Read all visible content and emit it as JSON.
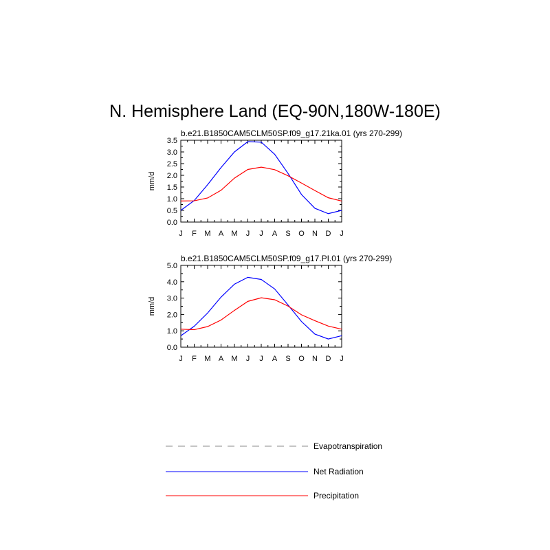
{
  "title": "N. Hemisphere Land (EQ-90N,180W-180E)",
  "colors": {
    "evapotranspiration": "#666666",
    "net_radiation": "#0000ff",
    "precipitation": "#ff0000"
  },
  "legend": [
    {
      "label": "Evapotranspiration",
      "color": "#666666",
      "style": "dashed"
    },
    {
      "label": "Net Radiation",
      "color": "#0000ff",
      "style": "solid"
    },
    {
      "label": "Precipitation",
      "color": "#ff0000",
      "style": "solid"
    }
  ],
  "chart_data": [
    {
      "type": "line",
      "title": "b.e21.B1850CAM5CLM50SP.f09_g17.21ka.01 (yrs 270-299)",
      "xlabel": "",
      "ylabel": "mm/d",
      "ylim": [
        0,
        3.5
      ],
      "yticks": [
        "0.0",
        "0.5",
        "1.0",
        "1.5",
        "2.0",
        "2.5",
        "3.0",
        "3.5"
      ],
      "categories": [
        "J",
        "F",
        "M",
        "A",
        "M",
        "J",
        "J",
        "A",
        "S",
        "O",
        "N",
        "D",
        "J"
      ],
      "series": [
        {
          "name": "Net Radiation",
          "color": "#0000ff",
          "values": [
            0.5,
            0.92,
            1.6,
            2.33,
            3.0,
            3.44,
            3.42,
            2.9,
            2.08,
            1.18,
            0.59,
            0.36,
            0.5
          ]
        },
        {
          "name": "Precipitation",
          "color": "#ff0000",
          "values": [
            0.9,
            0.91,
            1.03,
            1.36,
            1.88,
            2.25,
            2.35,
            2.24,
            1.98,
            1.67,
            1.35,
            1.04,
            0.9
          ]
        }
      ]
    },
    {
      "type": "line",
      "title": "b.e21.B1850CAM5CLM50SP.f09_g17.PI.01 (yrs 270-299)",
      "xlabel": "",
      "ylabel": "mm/d",
      "ylim": [
        0,
        5
      ],
      "yticks": [
        "0.0",
        "1.0",
        "2.0",
        "3.0",
        "4.0",
        "5.0"
      ],
      "categories": [
        "J",
        "F",
        "M",
        "A",
        "M",
        "J",
        "J",
        "A",
        "S",
        "O",
        "N",
        "D",
        "J"
      ],
      "series": [
        {
          "name": "Net Radiation",
          "color": "#0000ff",
          "values": [
            0.7,
            1.28,
            2.09,
            3.06,
            3.85,
            4.27,
            4.14,
            3.56,
            2.58,
            1.57,
            0.8,
            0.5,
            0.7
          ]
        },
        {
          "name": "Precipitation",
          "color": "#ff0000",
          "values": [
            1.1,
            1.07,
            1.26,
            1.66,
            2.25,
            2.8,
            3.02,
            2.9,
            2.51,
            1.98,
            1.62,
            1.29,
            1.1
          ]
        }
      ]
    }
  ]
}
